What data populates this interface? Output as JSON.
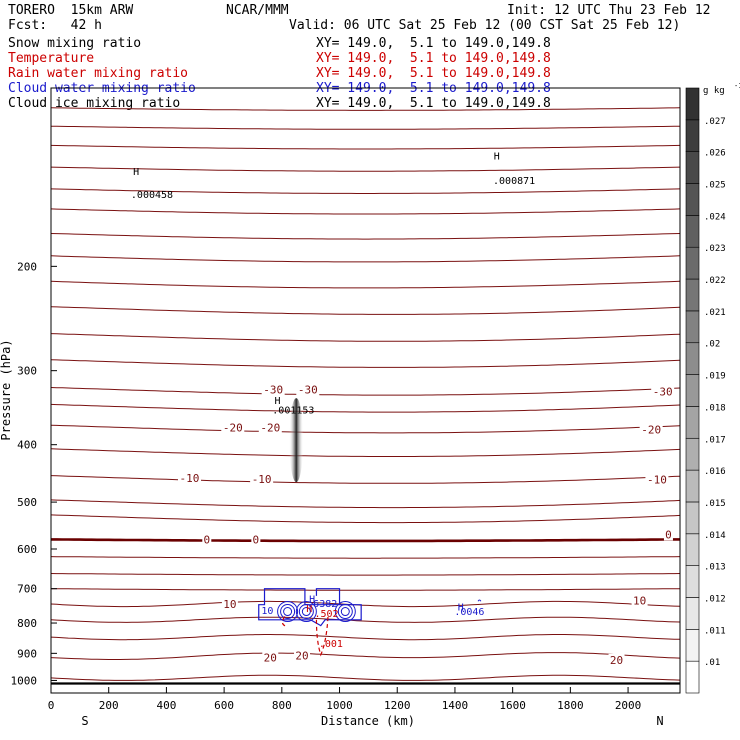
{
  "header": {
    "model": "TORERO  15km ARW",
    "org": "NCAR/MMM",
    "init": "Init: 12 UTC Thu 23 Feb 12",
    "fcst": "Fcst:   42 h",
    "valid": "Valid: 06 UTC Sat 25 Feb 12 (00 CST Sat 25 Feb 12)"
  },
  "legend": [
    {
      "name": "Snow mixing ratio",
      "xy": "XY= 149.0,  5.1 to 149.0,149.8",
      "color": "#000000"
    },
    {
      "name": "Temperature",
      "xy": "XY= 149.0,  5.1 to 149.0,149.8",
      "color": "#cc0000"
    },
    {
      "name": "Rain water mixing ratio",
      "xy": "XY= 149.0,  5.1 to 149.0,149.8",
      "color": "#cc0000"
    },
    {
      "name": "Cloud water mixing ratio",
      "xy": "XY= 149.0,  5.1 to 149.0,149.8",
      "color": "#1a1acc"
    },
    {
      "name": "Cloud ice mixing ratio",
      "xy": "XY= 149.0,  5.1 to 149.0,149.8",
      "color": "#000000"
    }
  ],
  "colors": {
    "temperature": "#7a1010",
    "temperature_zero": "#6a0000",
    "rain": "#cc0000",
    "cloud_water": "#1a1acc",
    "ice_shading": "#222222"
  },
  "chart_data": {
    "type": "cross-section",
    "xlabel": "Distance (km)",
    "ylabel": "Pressure (hPa)",
    "xlim": [
      0,
      2180
    ],
    "ylim": [
      1050,
      100
    ],
    "y_scale": "log",
    "x_ticks": [
      0,
      200,
      400,
      600,
      800,
      1000,
      1200,
      1400,
      1600,
      1800,
      2000
    ],
    "y_ticks": [
      200,
      300,
      400,
      500,
      600,
      700,
      800,
      900,
      1000
    ],
    "axis_end_labels": {
      "left": "S",
      "right": "N"
    },
    "temperature_labels": [
      {
        "text": "-30",
        "x": 770,
        "p": 323
      },
      {
        "text": "-30",
        "x": 890,
        "p": 323
      },
      {
        "text": "-30",
        "x": 2120,
        "p": 325
      },
      {
        "text": "-20",
        "x": 630,
        "p": 374
      },
      {
        "text": "-20",
        "x": 760,
        "p": 374
      },
      {
        "text": "-20",
        "x": 2080,
        "p": 377
      },
      {
        "text": "-10",
        "x": 480,
        "p": 455
      },
      {
        "text": "-10",
        "x": 730,
        "p": 457
      },
      {
        "text": "-10",
        "x": 2100,
        "p": 458
      },
      {
        "text": "0",
        "x": 540,
        "p": 578
      },
      {
        "text": "0",
        "x": 710,
        "p": 578
      },
      {
        "text": "0",
        "x": 2140,
        "p": 567
      },
      {
        "text": "10",
        "x": 620,
        "p": 743
      },
      {
        "text": "10",
        "x": 2040,
        "p": 733
      },
      {
        "text": "20",
        "x": 760,
        "p": 915
      },
      {
        "text": "20",
        "x": 870,
        "p": 908
      },
      {
        "text": "20",
        "x": 1960,
        "p": 923
      }
    ],
    "extremum_labels": [
      {
        "text": "H",
        "x": 295,
        "p": 138,
        "color": "#000000"
      },
      {
        "text": ".000458",
        "x": 350,
        "p": 151,
        "color": "#000000"
      },
      {
        "text": "H",
        "x": 785,
        "p": 336,
        "color": "#000000"
      },
      {
        "text": ".001153",
        "x": 840,
        "p": 349,
        "color": "#000000"
      },
      {
        "text": "H",
        "x": 1545,
        "p": 130,
        "color": "#000000"
      },
      {
        "text": ".000871",
        "x": 1605,
        "p": 143,
        "color": "#000000"
      },
      {
        "text": "H",
        "x": 905,
        "p": 727,
        "color": "#1a1acc"
      },
      {
        "text": ".6382",
        "x": 940,
        "p": 740,
        "color": "#1a1acc"
      },
      {
        "text": "H",
        "x": 895,
        "p": 755,
        "color": "#cc0000"
      },
      {
        "text": ".502",
        "x": 955,
        "p": 770,
        "color": "#cc0000"
      },
      {
        "text": "H",
        "x": 1420,
        "p": 750,
        "color": "#1a1acc"
      },
      {
        "text": ".0046",
        "x": 1450,
        "p": 763,
        "color": "#1a1acc"
      },
      {
        "text": ".001",
        "x": 970,
        "p": 865,
        "color": "#cc0000"
      },
      {
        "text": "10",
        "x": 750,
        "p": 760,
        "color": "#1a1acc"
      }
    ],
    "colorbar": {
      "unit": "g kg",
      "unit_exp": "-1",
      "levels": [
        ".01",
        ".011",
        ".012",
        ".013",
        ".014",
        ".015",
        ".016",
        ".017",
        ".018",
        ".019",
        ".02",
        ".021",
        ".022",
        ".023",
        ".024",
        ".025",
        ".026",
        ".027"
      ]
    }
  }
}
